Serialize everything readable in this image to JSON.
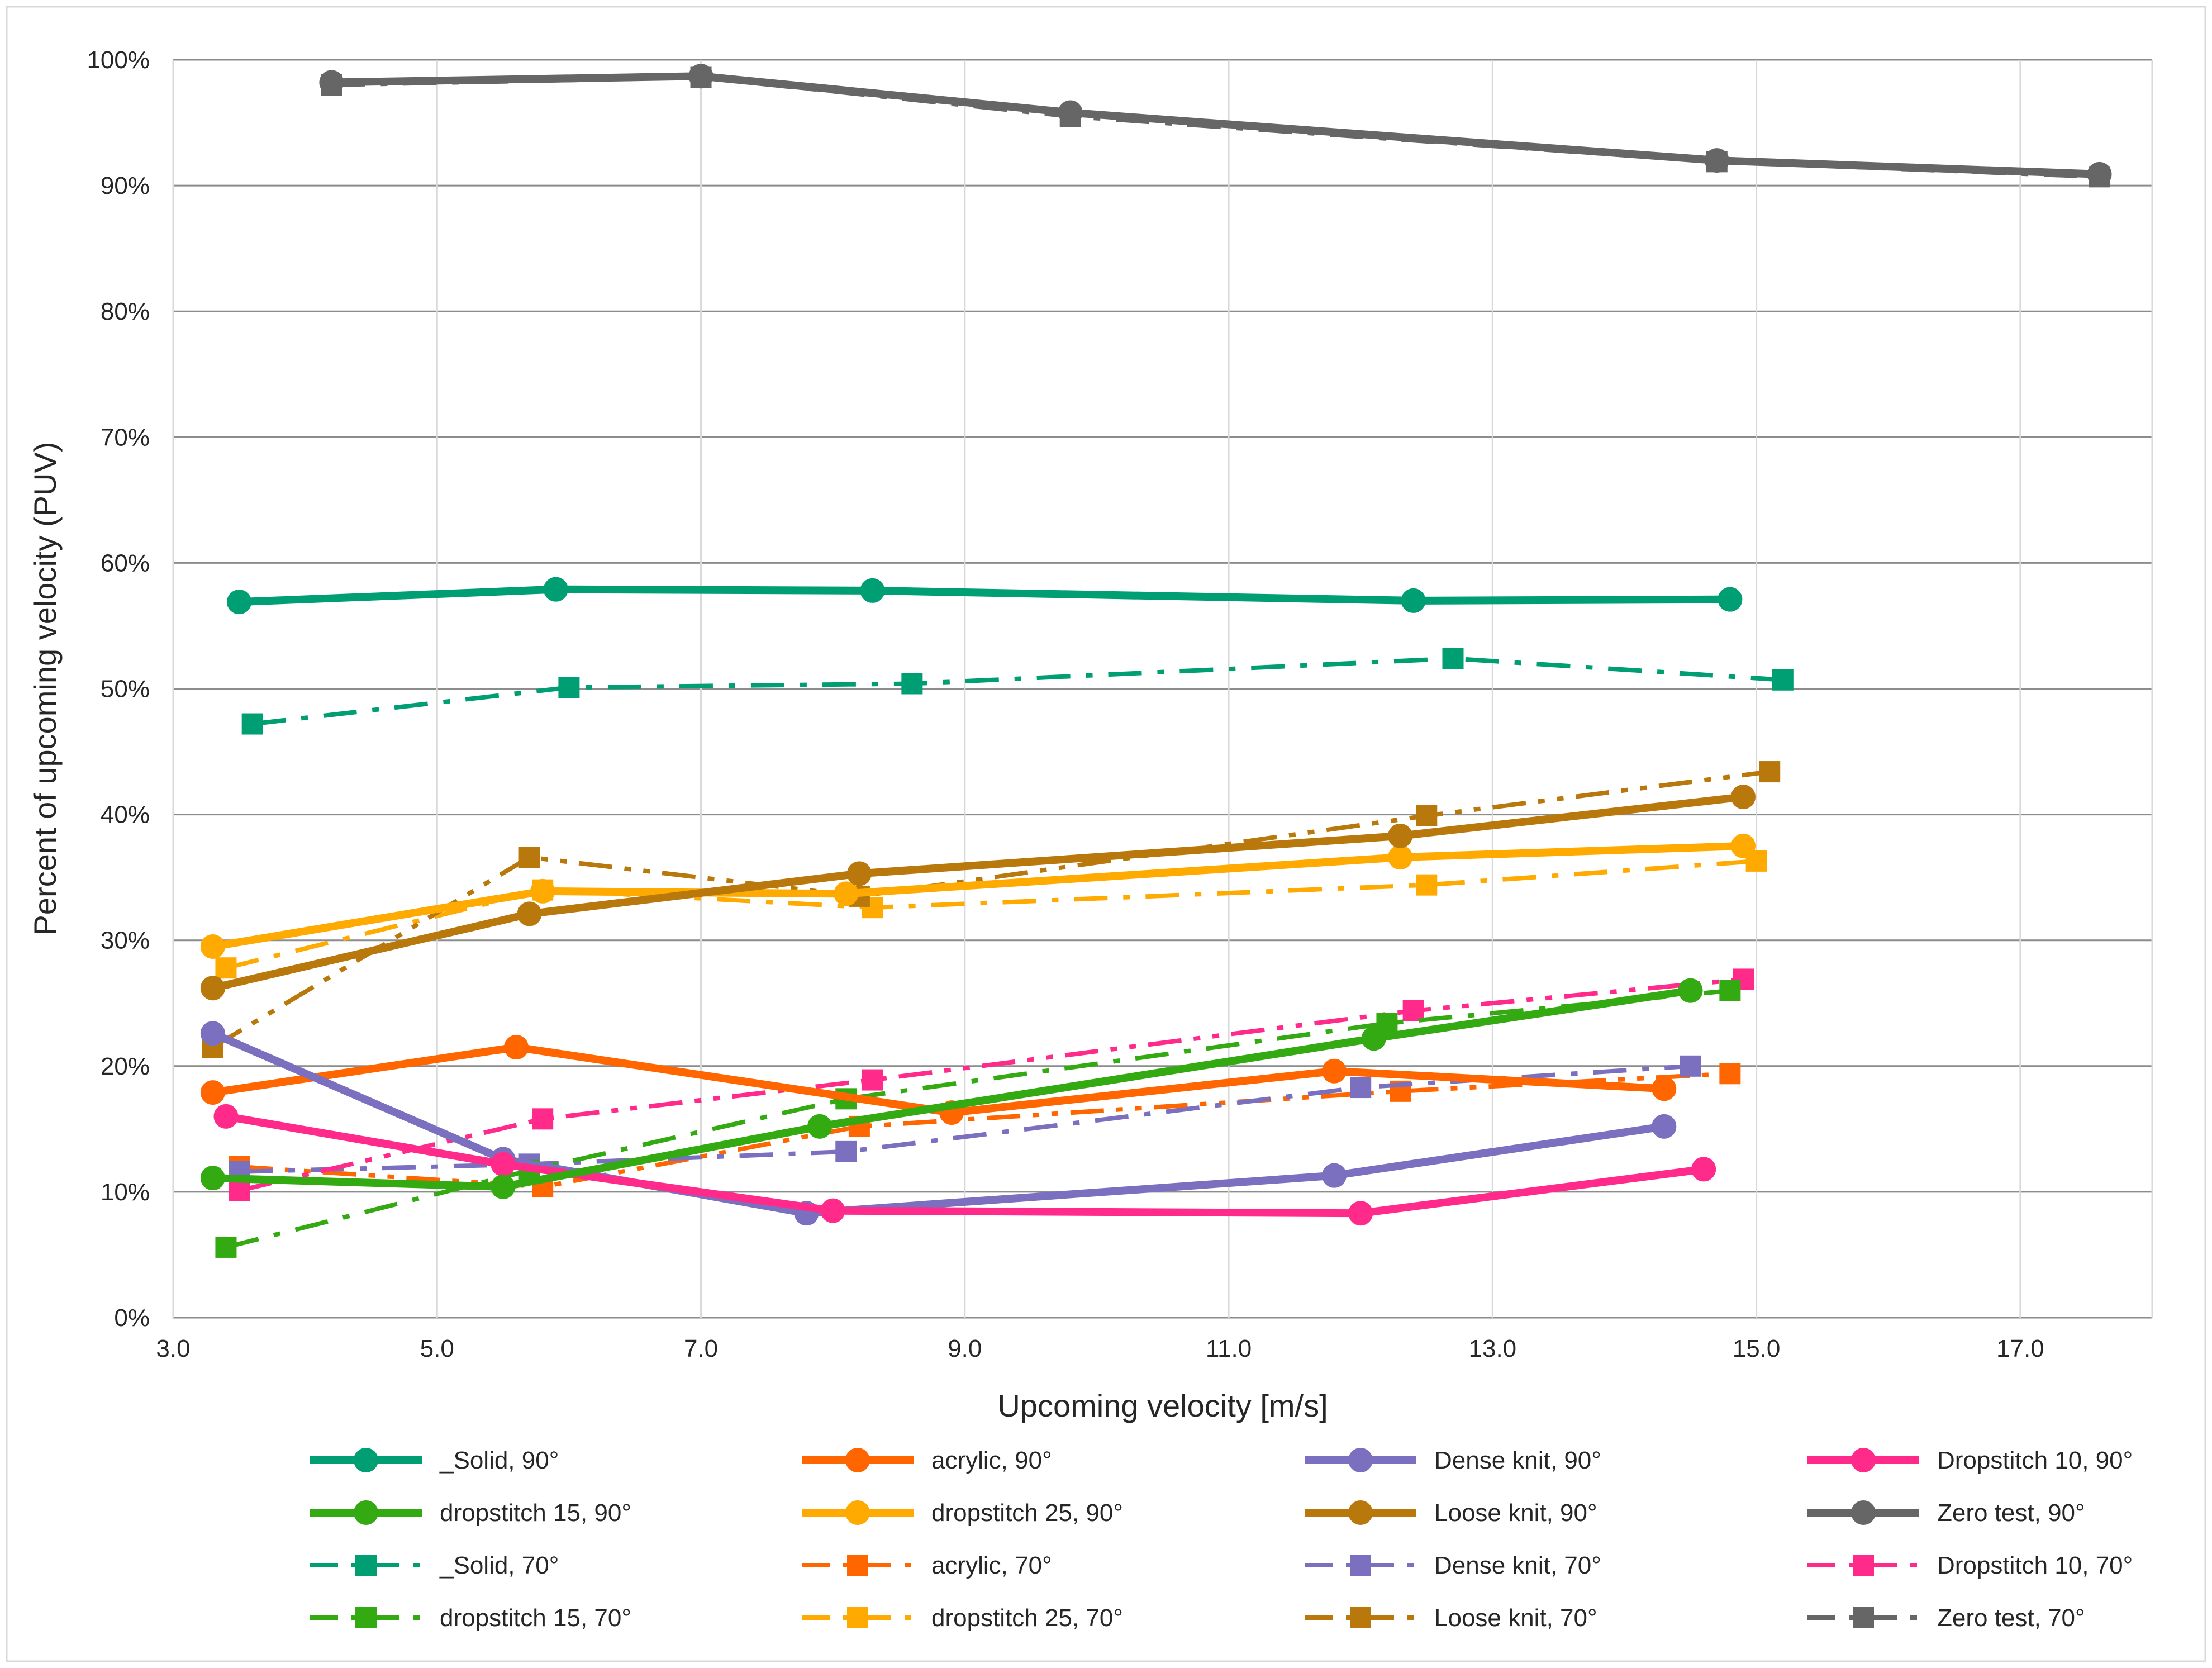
{
  "chart_data": {
    "type": "line",
    "title": "",
    "xlabel": "Upcoming velocity [m/s]",
    "ylabel": "Percent of upcoming velocity  (PUV)",
    "xlim": [
      3.0,
      18.0
    ],
    "ylim": [
      0,
      100
    ],
    "x_ticks": [
      "3.0",
      "5.0",
      "7.0",
      "9.0",
      "11.0",
      "13.0",
      "15.0",
      "17.0"
    ],
    "y_ticks": [
      "0%",
      "10%",
      "20%",
      "30%",
      "40%",
      "50%",
      "60%",
      "70%",
      "80%",
      "90%",
      "100%"
    ],
    "grid": "both",
    "legend_position": "bottom",
    "series": [
      {
        "name": "_Solid, 90°",
        "color": "#009e73",
        "dash": "solid",
        "marker": "circle",
        "x": [
          3.5,
          5.9,
          8.3,
          12.4,
          14.8
        ],
        "y": [
          56.9,
          57.9,
          57.8,
          57.0,
          57.1
        ]
      },
      {
        "name": "acrylic, 90°",
        "color": "#ff6600",
        "dash": "solid",
        "marker": "circle",
        "x": [
          3.3,
          5.6,
          8.9,
          11.8,
          14.3
        ],
        "y": [
          17.9,
          21.5,
          16.3,
          19.6,
          18.2
        ]
      },
      {
        "name": "Dense knit, 90°",
        "color": "#7b6fc0",
        "dash": "solid",
        "marker": "circle",
        "x": [
          3.3,
          5.5,
          7.8,
          11.8,
          14.3
        ],
        "y": [
          22.6,
          12.6,
          8.3,
          11.3,
          15.2
        ]
      },
      {
        "name": "Dropstitch 10, 90°",
        "color": "#ff2a8a",
        "dash": "solid",
        "marker": "circle",
        "x": [
          3.4,
          5.5,
          8.0,
          12.0,
          14.6
        ],
        "y": [
          16.0,
          12.2,
          8.5,
          8.3,
          11.8
        ]
      },
      {
        "name": "dropstitch 15, 90°",
        "color": "#33aa11",
        "dash": "solid",
        "marker": "circle",
        "x": [
          3.3,
          5.5,
          7.9,
          12.1,
          14.5
        ],
        "y": [
          11.1,
          10.4,
          15.2,
          22.2,
          26.0
        ]
      },
      {
        "name": "dropstitch 25, 90°",
        "color": "#ffaa00",
        "dash": "solid",
        "marker": "circle",
        "x": [
          3.3,
          5.8,
          8.1,
          12.3,
          14.9
        ],
        "y": [
          29.5,
          33.9,
          33.7,
          36.6,
          37.5
        ]
      },
      {
        "name": "Loose knit, 90°",
        "color": "#b8780b",
        "dash": "solid",
        "marker": "circle",
        "x": [
          3.3,
          5.7,
          8.2,
          12.3,
          14.9
        ],
        "y": [
          26.2,
          32.1,
          35.3,
          38.3,
          41.4
        ]
      },
      {
        "name": "Zero test, 90°",
        "color": "#666666",
        "dash": "solid",
        "marker": "circle",
        "x": [
          4.2,
          7.0,
          9.8,
          14.7,
          17.6
        ],
        "y": [
          98.2,
          98.7,
          95.8,
          92.0,
          90.9
        ]
      },
      {
        "name": "_Solid, 70°",
        "color": "#009e73",
        "dash": "dashdot",
        "marker": "square",
        "x": [
          3.6,
          6.0,
          8.6,
          12.7,
          15.2
        ],
        "y": [
          47.2,
          50.1,
          50.4,
          52.4,
          50.7
        ]
      },
      {
        "name": "acrylic, 70°",
        "color": "#ff6600",
        "dash": "dashdotdot",
        "marker": "square",
        "x": [
          3.5,
          5.8,
          8.2,
          12.3,
          14.8
        ],
        "y": [
          12.0,
          10.4,
          15.2,
          18.0,
          19.4
        ]
      },
      {
        "name": "Dense knit, 70°",
        "color": "#7b6fc0",
        "dash": "dashdot",
        "marker": "square",
        "x": [
          3.5,
          5.7,
          8.1,
          12.0,
          14.5
        ],
        "y": [
          11.6,
          12.2,
          13.2,
          18.3,
          20.0
        ]
      },
      {
        "name": "Dropstitch 10, 70°",
        "color": "#ff2a8a",
        "dash": "dashdotdot",
        "marker": "square",
        "x": [
          3.5,
          5.8,
          8.3,
          12.4,
          14.9
        ],
        "y": [
          10.1,
          15.8,
          18.9,
          24.4,
          26.9
        ]
      },
      {
        "name": "dropstitch 15, 70°",
        "color": "#33aa11",
        "dash": "dashdot",
        "marker": "square",
        "x": [
          3.4,
          5.7,
          8.1,
          12.2,
          14.8
        ],
        "y": [
          5.6,
          11.7,
          17.4,
          23.4,
          26.0
        ]
      },
      {
        "name": "dropstitch 25, 70°",
        "color": "#ffaa00",
        "dash": "dashdot",
        "marker": "square",
        "x": [
          3.4,
          5.8,
          8.3,
          12.5,
          15.0
        ],
        "y": [
          27.8,
          34.0,
          32.6,
          34.4,
          36.3
        ]
      },
      {
        "name": "Loose knit, 70°",
        "color": "#b8780b",
        "dash": "dashdotdot",
        "marker": "square",
        "x": [
          3.3,
          5.7,
          8.2,
          12.5,
          15.1
        ],
        "y": [
          21.5,
          36.6,
          33.5,
          39.9,
          43.4
        ]
      },
      {
        "name": "Zero test, 70°",
        "color": "#666666",
        "dash": "dashdot",
        "marker": "square",
        "x": [
          4.2,
          7.0,
          9.8,
          14.7,
          17.6
        ],
        "y": [
          98.0,
          98.6,
          95.5,
          91.9,
          90.7
        ]
      }
    ]
  }
}
